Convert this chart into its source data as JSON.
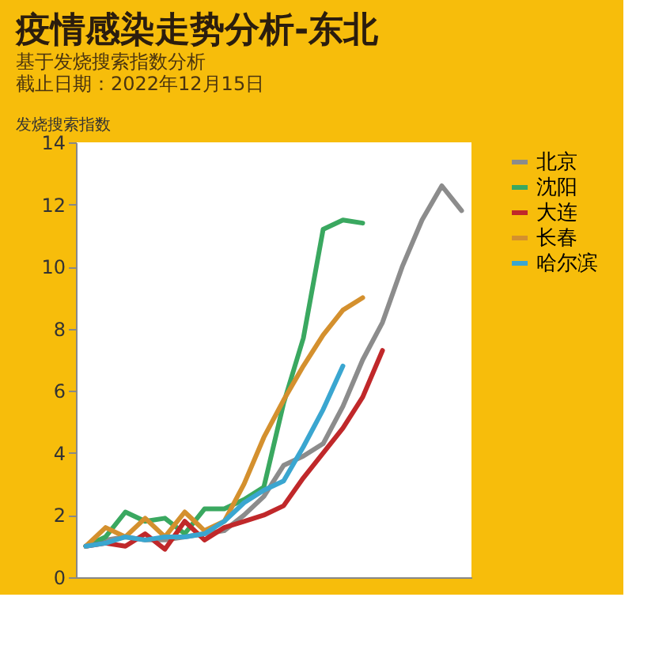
{
  "chart_data": {
    "type": "line",
    "title": "疫情感染走势分析-东北",
    "subtitle": "基于发烧搜索指数分析",
    "annotations": [
      "截止日期：2022年12月15日"
    ],
    "ylabel": "发烧搜索指数",
    "categories": [
      null,
      null,
      null,
      null,
      null,
      null,
      null,
      null,
      null,
      null,
      null,
      null,
      null,
      null,
      null,
      null,
      null,
      null,
      null,
      null
    ],
    "series": [
      {
        "name": "北京",
        "color": "#8c8c8c",
        "values": [
          1.0,
          1.2,
          1.3,
          1.2,
          1.2,
          1.3,
          1.4,
          1.5,
          2.0,
          2.6,
          3.6,
          3.9,
          4.3,
          5.5,
          7.0,
          8.2,
          10.0,
          11.5,
          12.6,
          11.8
        ]
      },
      {
        "name": "沈阳",
        "color": "#3aa860",
        "values": [
          1.0,
          1.3,
          2.1,
          1.8,
          1.9,
          1.4,
          2.2,
          2.2,
          2.5,
          2.9,
          5.6,
          7.7,
          11.2,
          11.5,
          11.4,
          null,
          null,
          null,
          null,
          null
        ]
      },
      {
        "name": "大连",
        "color": "#c0282a",
        "values": [
          1.0,
          1.1,
          1.0,
          1.4,
          0.9,
          1.8,
          1.2,
          1.6,
          1.8,
          2.0,
          2.3,
          3.2,
          4.0,
          4.8,
          5.8,
          7.3,
          null,
          null,
          null,
          null
        ]
      },
      {
        "name": "长春",
        "color": "#d4902e",
        "values": [
          1.0,
          1.6,
          1.3,
          1.9,
          1.3,
          2.1,
          1.5,
          1.8,
          3.0,
          4.5,
          5.7,
          6.8,
          7.8,
          8.6,
          9.0,
          null,
          null,
          null,
          null,
          null
        ]
      },
      {
        "name": "哈尔滨",
        "color": "#3aa6d0",
        "values": [
          1.0,
          1.1,
          1.3,
          1.2,
          1.3,
          1.3,
          1.4,
          1.8,
          2.4,
          2.8,
          3.1,
          4.2,
          5.4,
          6.8,
          null,
          null,
          null,
          null,
          null,
          null
        ]
      }
    ],
    "ylim": [
      0,
      14
    ],
    "yticks": [
      0,
      2,
      4,
      6,
      8,
      10,
      12,
      14
    ],
    "grid": false,
    "legend": "right",
    "tick_labels": "y",
    "marker": "none",
    "line_style": "solid"
  }
}
